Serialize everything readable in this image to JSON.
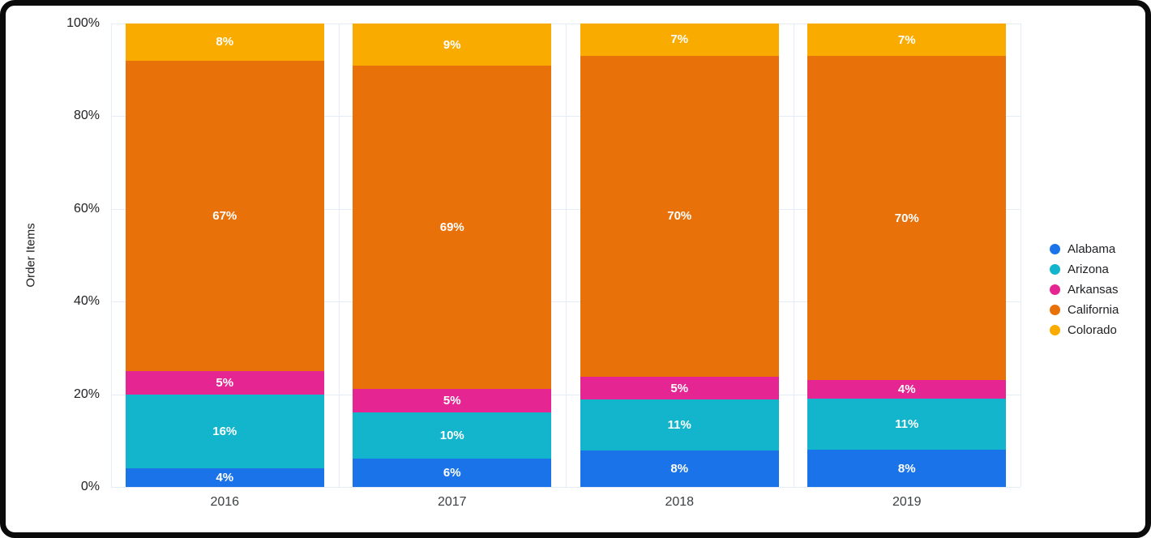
{
  "frame": {
    "border_color": "#0b0b0b",
    "background": "#ffffff"
  },
  "colors": {
    "gridline": "#e4edf7",
    "y_tick_text": "#202124",
    "x_tick_text": "#3c4043",
    "segment_label_text": "#ffffff"
  },
  "chart_data": {
    "type": "bar",
    "variant": "stacked-100-percent",
    "title": "",
    "xlabel": "",
    "ylabel": "Order Items",
    "ylim": [
      0,
      100
    ],
    "grid": true,
    "legend_position": "right",
    "categories": [
      "2016",
      "2017",
      "2018",
      "2019"
    ],
    "series": [
      {
        "name": "Alabama",
        "color": "#1a73e8",
        "values": [
          4,
          6,
          8,
          8
        ],
        "labels": [
          "4%",
          "6%",
          "8%",
          "8%"
        ]
      },
      {
        "name": "Arizona",
        "color": "#12b5cb",
        "values": [
          16,
          10,
          11,
          11
        ],
        "labels": [
          "16%",
          "10%",
          "11%",
          "11%"
        ]
      },
      {
        "name": "Arkansas",
        "color": "#e52592",
        "values": [
          5,
          5,
          5,
          4
        ],
        "labels": [
          "5%",
          "5%",
          "5%",
          "4%"
        ]
      },
      {
        "name": "California",
        "color": "#e8710a",
        "values": [
          67,
          69,
          70,
          70
        ],
        "labels": [
          "67%",
          "69%",
          "70%",
          "70%"
        ]
      },
      {
        "name": "Colorado",
        "color": "#f9ab00",
        "values": [
          8,
          9,
          7,
          7
        ],
        "labels": [
          "8%",
          "9%",
          "7%",
          "7%"
        ]
      }
    ],
    "y_axis": {
      "tick_values": [
        0,
        20,
        40,
        60,
        80,
        100
      ],
      "tick_labels": [
        "0%",
        "20%",
        "40%",
        "60%",
        "80%",
        "100%"
      ]
    },
    "legend": [
      "Alabama",
      "Arizona",
      "Arkansas",
      "California",
      "Colorado"
    ]
  }
}
